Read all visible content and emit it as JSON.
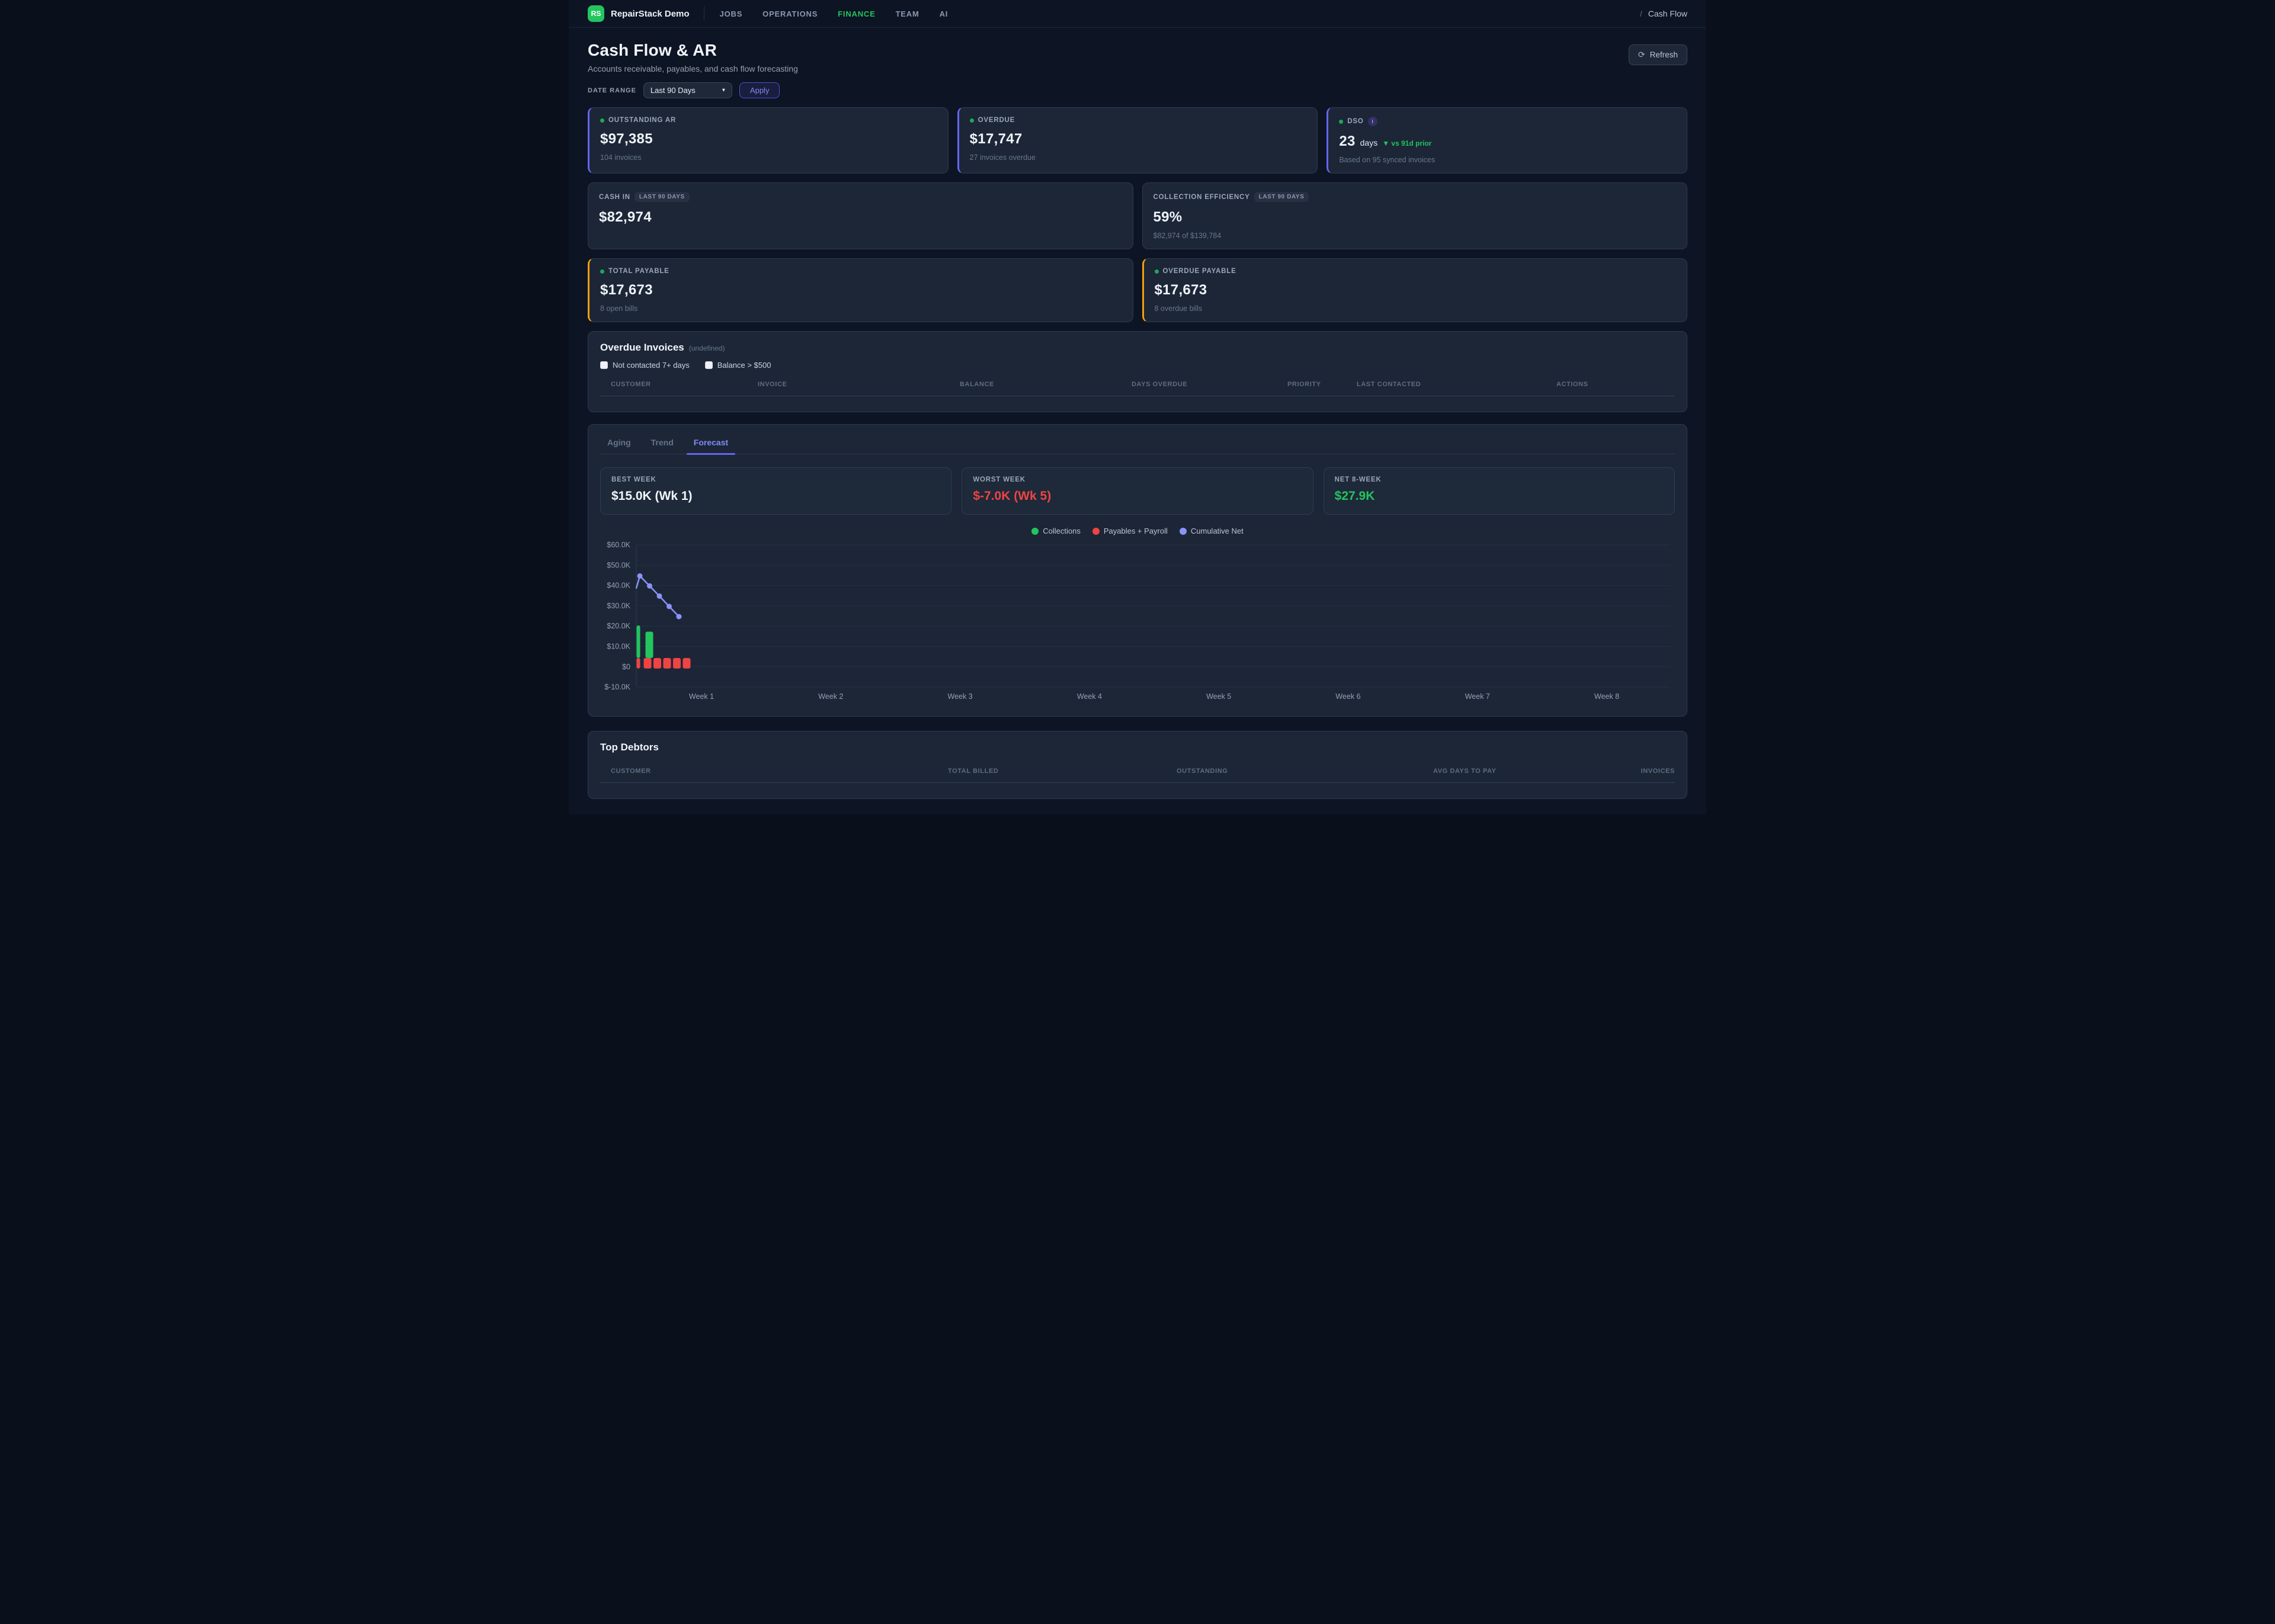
{
  "nav": {
    "logo": "RS",
    "brand": "RepairStack Demo",
    "items": [
      {
        "label": "JOBS",
        "active": false
      },
      {
        "label": "OPERATIONS",
        "active": false
      },
      {
        "label": "FINANCE",
        "active": true
      },
      {
        "label": "TEAM",
        "active": false
      },
      {
        "label": "AI",
        "active": false
      }
    ],
    "breadcrumb_sep": "/",
    "breadcrumb": "Cash Flow"
  },
  "header": {
    "title": "Cash Flow & AR",
    "subtitle": "Accounts receivable, payables, and cash flow forecasting",
    "refresh_label": "Refresh",
    "refresh_icon": "⟳"
  },
  "filters": {
    "label": "DATE RANGE",
    "selected": "Last 90 Days",
    "chevron": "▾",
    "apply_label": "Apply"
  },
  "kpis": {
    "outstanding": {
      "label": "OUTSTANDING AR",
      "value": "$97,385",
      "sub": "104 invoices"
    },
    "overdue": {
      "label": "OVERDUE",
      "value": "$17,747",
      "sub": "27 invoices overdue"
    },
    "dso": {
      "label": "DSO",
      "info": "i",
      "value": "23",
      "unit": "days",
      "delta": "▼ vs 91d prior",
      "sub": "Based on 95 synced invoices"
    },
    "cash_in": {
      "label": "CASH IN",
      "badge": "LAST 90 DAYS",
      "value": "$82,974"
    },
    "collection_efficiency": {
      "label": "COLLECTION EFFICIENCY",
      "badge": "LAST 90 DAYS",
      "value": "59%",
      "sub": "$82,974 of $139,784"
    },
    "total_payable": {
      "label": "TOTAL PAYABLE",
      "value": "$17,673",
      "sub": "8 open bills"
    },
    "overdue_payable": {
      "label": "OVERDUE PAYABLE",
      "value": "$17,673",
      "sub": "8 overdue bills"
    }
  },
  "overdue_invoices": {
    "title": "Overdue Invoices",
    "title_suffix": "(undefined)",
    "checkboxes": [
      {
        "label": "Not contacted 7+ days",
        "checked": false
      },
      {
        "label": "Balance > $500",
        "checked": false
      }
    ],
    "columns": [
      "CUSTOMER",
      "INVOICE",
      "BALANCE",
      "DAYS OVERDUE",
      "PRIORITY",
      "LAST CONTACTED",
      "ACTIONS"
    ],
    "rows": []
  },
  "tabs": [
    {
      "label": "Aging",
      "active": false
    },
    {
      "label": "Trend",
      "active": false
    },
    {
      "label": "Forecast",
      "active": true
    }
  ],
  "forecast_summary": {
    "best": {
      "label": "BEST WEEK",
      "value": "$15.0K (Wk 1)"
    },
    "worst": {
      "label": "WORST WEEK",
      "value": "$-7.0K (Wk 5)"
    },
    "net": {
      "label": "NET 8-WEEK",
      "value": "$27.9K"
    }
  },
  "chart_data": {
    "type": "mixed-bar-line",
    "title": "8-week cash flow forecast",
    "legend": [
      {
        "label": "Collections",
        "color": "#22c55e"
      },
      {
        "label": "Payables + Payroll",
        "color": "#ef4444"
      },
      {
        "label": "Cumulative Net",
        "color": "#8b93f8"
      }
    ],
    "ylim": [
      -10000,
      60000
    ],
    "grid": true,
    "y_ticks": [
      {
        "label": "$60.0K",
        "value": 60000
      },
      {
        "label": "$50.0K",
        "value": 50000
      },
      {
        "label": "$40.0K",
        "value": 40000
      },
      {
        "label": "$30.0K",
        "value": 30000
      },
      {
        "label": "$20.0K",
        "value": 20000
      },
      {
        "label": "$10.0K",
        "value": 10000
      },
      {
        "label": "$0",
        "value": 0
      },
      {
        "label": "$-10.0K",
        "value": -10000
      }
    ],
    "x_labels": [
      "Week 1",
      "Week 2",
      "Week 3",
      "Week 4",
      "Week 5",
      "Week 6",
      "Week 7",
      "Week 8"
    ],
    "series": [
      {
        "name": "Collections",
        "type": "bar",
        "color": "#22c55e",
        "points": [
          {
            "slot": 0,
            "value": 20400
          },
          {
            "slot": 1,
            "value": 17300
          }
        ]
      },
      {
        "name": "Payables + Payroll",
        "type": "bar",
        "color": "#ef4444",
        "points": [
          {
            "slot": 0,
            "value": 4300
          },
          {
            "slot": 1,
            "value": 4300
          },
          {
            "slot": 2,
            "value": 4300
          },
          {
            "slot": 3,
            "value": 4300
          },
          {
            "slot": 4,
            "value": 4300
          },
          {
            "slot": 5,
            "value": 4300
          }
        ]
      },
      {
        "name": "Cumulative Net",
        "type": "line",
        "color": "#8b93f8",
        "points": [
          {
            "slot": -0.36,
            "value": 38800,
            "dot": false
          },
          {
            "slot": 0,
            "value": 44700,
            "dot": true
          },
          {
            "slot": 1,
            "value": 39800,
            "dot": true
          },
          {
            "slot": 2,
            "value": 34800,
            "dot": true
          },
          {
            "slot": 3,
            "value": 29700,
            "dot": true
          },
          {
            "slot": 4,
            "value": 24700,
            "dot": true
          }
        ]
      }
    ]
  },
  "top_debtors": {
    "title": "Top Debtors",
    "columns": [
      "CUSTOMER",
      "TOTAL BILLED",
      "OUTSTANDING",
      "AVG DAYS TO PAY",
      "INVOICES"
    ],
    "rows": []
  },
  "colors": {
    "accent_indigo": "#6366f1",
    "accent_orange": "#f59e0b",
    "green": "#22c55e",
    "red": "#ef4444",
    "line_indigo": "#8b93f8",
    "card_bg": "#1c2637",
    "page_bg": "#0d1424"
  }
}
